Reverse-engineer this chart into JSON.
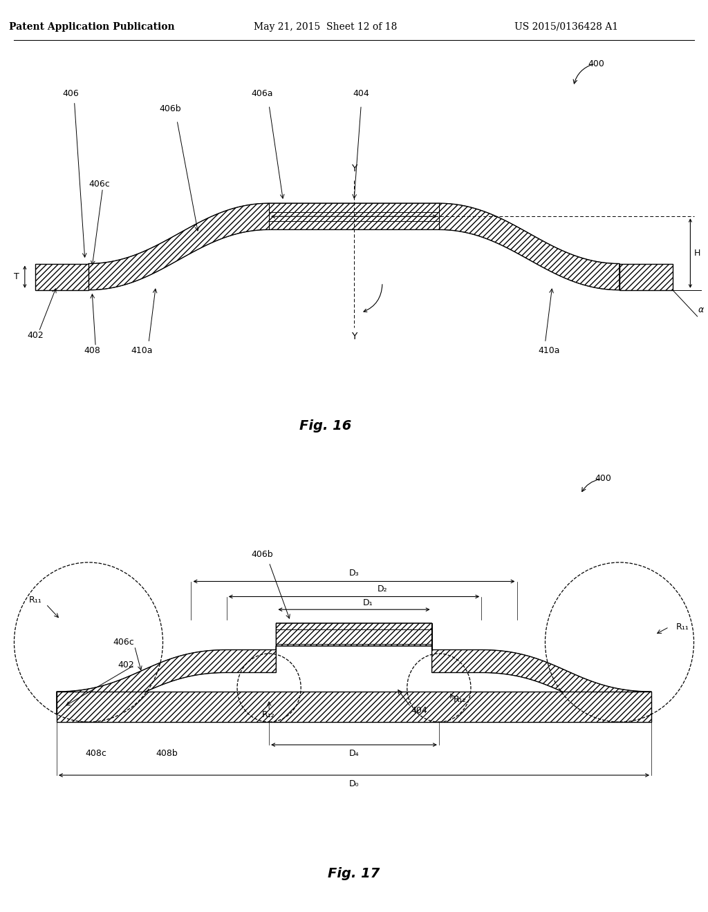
{
  "header_left": "Patent Application Publication",
  "header_mid": "May 21, 2015  Sheet 12 of 18",
  "header_right": "US 2015/0136428 A1",
  "fig16_caption": "Fig. 16",
  "fig17_caption": "Fig. 17",
  "bg_color": "#ffffff",
  "line_color": "#000000",
  "label_fontsize": 9,
  "header_fontsize": 10,
  "caption_fontsize": 14
}
